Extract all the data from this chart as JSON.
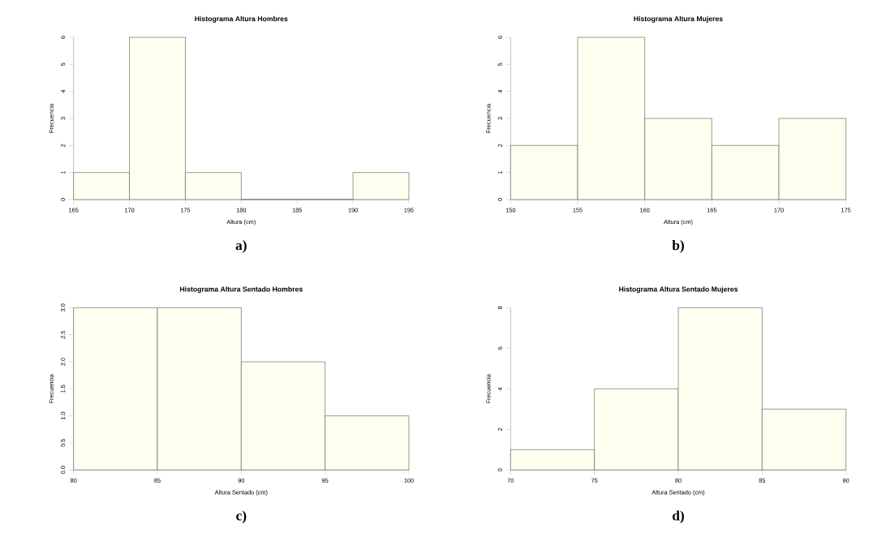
{
  "chart_data": [
    {
      "type": "histogram",
      "title": "Histograma Altura Hombres",
      "xlabel": "Altura (cm)",
      "ylabel": "Frecuencia",
      "color": "#fffff0",
      "bins": [
        165,
        170,
        175,
        180,
        185,
        190,
        195
      ],
      "values": [
        1,
        6,
        1,
        0,
        0,
        1
      ],
      "xlim": [
        165,
        195
      ],
      "ylim": [
        0,
        6
      ],
      "xticks": [
        165,
        170,
        175,
        180,
        185,
        190,
        195
      ],
      "yticks": [
        0,
        1,
        2,
        3,
        4,
        5,
        6
      ],
      "annotations": [
        "a)"
      ]
    },
    {
      "type": "histogram",
      "title": "Histograma Altura Mujeres",
      "xlabel": "Altura (cm)",
      "ylabel": "Frecuencia",
      "color": "#fffff0",
      "bins": [
        150,
        155,
        160,
        165,
        170,
        175
      ],
      "values": [
        2,
        6,
        3,
        2,
        3
      ],
      "xlim": [
        150,
        175
      ],
      "ylim": [
        0,
        6
      ],
      "xticks": [
        150,
        155,
        160,
        165,
        170,
        175
      ],
      "yticks": [
        0,
        1,
        2,
        3,
        4,
        5,
        6
      ],
      "annotations": [
        "b)"
      ]
    },
    {
      "type": "histogram",
      "title": "Histograma Altura Sentado Hombres",
      "xlabel": "Altura Sentado (cm)",
      "ylabel": "Frecuencia",
      "color": "#fffff0",
      "bins": [
        80,
        85,
        90,
        95,
        100
      ],
      "values": [
        3,
        3,
        2,
        1
      ],
      "xlim": [
        80,
        100
      ],
      "ylim": [
        0,
        3
      ],
      "xticks": [
        80,
        85,
        90,
        95,
        100
      ],
      "yticks": [
        {
          "value": 0,
          "label": "0.0"
        },
        {
          "value": 0.5,
          "label": "0.5"
        },
        {
          "value": 1,
          "label": "1.0"
        },
        {
          "value": 1.5,
          "label": "1.5"
        },
        {
          "value": 2,
          "label": "2.0"
        },
        {
          "value": 2.5,
          "label": "2.5"
        },
        {
          "value": 3,
          "label": "3.0"
        }
      ],
      "annotations": [
        "c)"
      ]
    },
    {
      "type": "histogram",
      "title": "Histograma Altura Sentado Mujeres",
      "xlabel": "Altura Sentado (cm)",
      "ylabel": "Frecuencia",
      "color": "#fffff0",
      "bins": [
        70,
        75,
        80,
        85,
        90
      ],
      "values": [
        1,
        4,
        8,
        3
      ],
      "xlim": [
        70,
        90
      ],
      "ylim": [
        0,
        8
      ],
      "xticks": [
        70,
        75,
        80,
        85,
        90
      ],
      "yticks": [
        0,
        2,
        4,
        6,
        8
      ],
      "annotations": [
        "d)"
      ]
    }
  ]
}
